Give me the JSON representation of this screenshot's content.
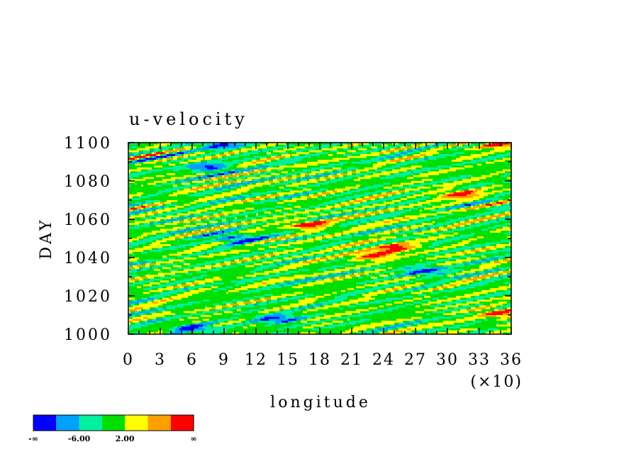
{
  "chart_data": {
    "type": "heatmap",
    "title": "u-velocity",
    "xlabel": "longitude",
    "ylabel": "DAY",
    "x_multiplier_label": "(×10)",
    "x_ticks": [
      0,
      3,
      6,
      9,
      12,
      15,
      18,
      21,
      24,
      27,
      30,
      33,
      36
    ],
    "y_ticks": [
      1000,
      1020,
      1040,
      1060,
      1080,
      1100
    ],
    "xlim": [
      0,
      36
    ],
    "ylim": [
      1000,
      1100
    ],
    "colorbar": {
      "colors": [
        "#0000ff",
        "#00a0ff",
        "#00f0a0",
        "#00e000",
        "#ffff00",
        "#ffa000",
        "#ff0000"
      ],
      "labels": [
        "-∞",
        "-6.00",
        "2.00",
        "∞"
      ]
    },
    "features": [
      {
        "x": 7.5,
        "y": 1087,
        "level": 0
      },
      {
        "x": 8.5,
        "y": 1099,
        "level": 0
      },
      {
        "x": 17,
        "y": 1057,
        "level": 6
      },
      {
        "x": 25,
        "y": 1045,
        "level": 6
      },
      {
        "x": 23,
        "y": 1041,
        "level": 6
      },
      {
        "x": 28,
        "y": 1033,
        "level": 0
      },
      {
        "x": 31,
        "y": 1073,
        "level": 6
      },
      {
        "x": 35,
        "y": 1011,
        "level": 6
      },
      {
        "x": 14,
        "y": 1008,
        "level": 0
      },
      {
        "x": 6,
        "y": 1003,
        "level": 0
      },
      {
        "x": 35,
        "y": 1099,
        "level": 6
      },
      {
        "x": 10,
        "y": 1050,
        "level": 0
      }
    ]
  }
}
